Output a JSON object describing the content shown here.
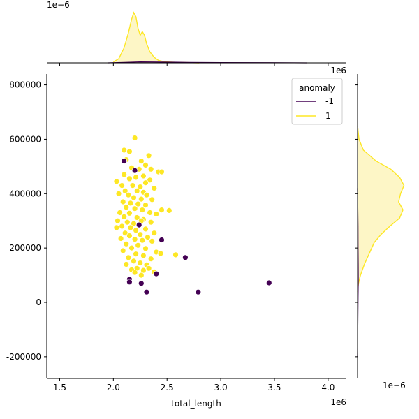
{
  "chart_data": {
    "type": "scatter",
    "xlabel": "total_length",
    "ylabel": "",
    "x_offset_label": "1e6",
    "y_offset_label": "1e6",
    "top_marginal_offset_label": "1e−6",
    "right_marginal_offset_label": "1e−6",
    "xlim": [
      1.38,
      4.17
    ],
    "ylim": [
      -280000,
      840000
    ],
    "x_ticks": [
      1.5,
      2.0,
      2.5,
      3.0,
      3.5,
      4.0
    ],
    "x_tick_labels": [
      "1.5",
      "2.0",
      "2.5",
      "3.0",
      "3.5",
      "4.0"
    ],
    "y_ticks": [
      -200000,
      0,
      200000,
      400000,
      600000,
      800000
    ],
    "y_tick_labels": [
      "-200000",
      "0",
      "200000",
      "400000",
      "600000",
      "800000"
    ],
    "legend": {
      "title": "anomaly",
      "placement": "top-right",
      "entries": [
        {
          "label": "-1",
          "color": "#440154"
        },
        {
          "label": "1",
          "color": "#fde725"
        }
      ]
    },
    "colors": {
      "anomaly": "#440154",
      "normal": "#fde725",
      "normal_fill": "#fdf6c6",
      "axis": "#000000"
    },
    "series": [
      {
        "name": "-1",
        "points": [
          [
            2.1,
            520000
          ],
          [
            2.2,
            485000
          ],
          [
            2.24,
            285000
          ],
          [
            2.45,
            230000
          ],
          [
            2.67,
            165000
          ],
          [
            2.4,
            105000
          ],
          [
            2.15,
            85000
          ],
          [
            2.15,
            75000
          ],
          [
            2.26,
            70000
          ],
          [
            2.31,
            38000
          ],
          [
            2.79,
            38000
          ],
          [
            3.45,
            72000
          ]
        ]
      },
      {
        "name": "1",
        "points": [
          [
            2.2,
            605000
          ],
          [
            2.1,
            560000
          ],
          [
            2.15,
            555000
          ],
          [
            2.33,
            540000
          ],
          [
            2.12,
            525000
          ],
          [
            2.26,
            520000
          ],
          [
            2.3,
            505000
          ],
          [
            2.17,
            495000
          ],
          [
            2.24,
            490000
          ],
          [
            2.35,
            490000
          ],
          [
            2.42,
            480000
          ],
          [
            2.45,
            480000
          ],
          [
            2.1,
            470000
          ],
          [
            2.28,
            465000
          ],
          [
            2.21,
            460000
          ],
          [
            2.15,
            455000
          ],
          [
            2.03,
            445000
          ],
          [
            2.34,
            450000
          ],
          [
            2.3,
            440000
          ],
          [
            2.08,
            430000
          ],
          [
            2.18,
            430000
          ],
          [
            2.25,
            425000
          ],
          [
            2.38,
            420000
          ],
          [
            2.11,
            410000
          ],
          [
            2.22,
            410000
          ],
          [
            2.28,
            405000
          ],
          [
            2.05,
            400000
          ],
          [
            2.14,
            395000
          ],
          [
            2.31,
            395000
          ],
          [
            2.19,
            385000
          ],
          [
            2.26,
            380000
          ],
          [
            2.36,
            378000
          ],
          [
            2.09,
            370000
          ],
          [
            2.16,
            365000
          ],
          [
            2.23,
            362000
          ],
          [
            2.3,
            358000
          ],
          [
            2.12,
            350000
          ],
          [
            2.2,
            345000
          ],
          [
            2.27,
            340000
          ],
          [
            2.45,
            340000
          ],
          [
            2.52,
            338000
          ],
          [
            2.06,
            330000
          ],
          [
            2.15,
            328000
          ],
          [
            2.34,
            330000
          ],
          [
            2.4,
            325000
          ],
          [
            2.1,
            315000
          ],
          [
            2.22,
            312000
          ],
          [
            2.28,
            305000
          ],
          [
            2.04,
            300000
          ],
          [
            2.13,
            295000
          ],
          [
            2.19,
            290000
          ],
          [
            2.26,
            300000
          ],
          [
            2.35,
            295000
          ],
          [
            2.08,
            280000
          ],
          [
            2.16,
            275000
          ],
          [
            2.03,
            275000
          ],
          [
            2.3,
            270000
          ],
          [
            2.21,
            265000
          ],
          [
            2.11,
            255000
          ],
          [
            2.25,
            250000
          ],
          [
            2.38,
            255000
          ],
          [
            2.15,
            245000
          ],
          [
            2.32,
            240000
          ],
          [
            2.07,
            235000
          ],
          [
            2.2,
            232000
          ],
          [
            2.27,
            228000
          ],
          [
            2.36,
            225000
          ],
          [
            2.12,
            215000
          ],
          [
            2.23,
            210000
          ],
          [
            2.17,
            200000
          ],
          [
            2.3,
            198000
          ],
          [
            2.09,
            190000
          ],
          [
            2.4,
            185000
          ],
          [
            2.44,
            180000
          ],
          [
            2.58,
            175000
          ],
          [
            2.21,
            178000
          ],
          [
            2.28,
            172000
          ],
          [
            2.14,
            165000
          ],
          [
            2.35,
            160000
          ],
          [
            2.19,
            152000
          ],
          [
            2.25,
            145000
          ],
          [
            2.12,
            140000
          ],
          [
            2.31,
            138000
          ],
          [
            2.22,
            125000
          ],
          [
            2.17,
            120000
          ],
          [
            2.28,
            118000
          ],
          [
            2.33,
            125000
          ],
          [
            2.2,
            110000
          ],
          [
            2.26,
            100000
          ],
          [
            2.38,
            112000
          ]
        ]
      }
    ],
    "top_marginal": {
      "type": "kde",
      "normal_curve": [
        [
          2.0,
          0.02
        ],
        [
          2.05,
          0.08
        ],
        [
          2.1,
          0.3
        ],
        [
          2.14,
          0.6
        ],
        [
          2.17,
          0.87
        ],
        [
          2.19,
          1.0
        ],
        [
          2.21,
          0.92
        ],
        [
          2.23,
          0.68
        ],
        [
          2.25,
          0.55
        ],
        [
          2.27,
          0.62
        ],
        [
          2.29,
          0.55
        ],
        [
          2.31,
          0.38
        ],
        [
          2.34,
          0.22
        ],
        [
          2.38,
          0.11
        ],
        [
          2.42,
          0.05
        ],
        [
          2.48,
          0.02
        ],
        [
          2.6,
          0.01
        ],
        [
          2.8,
          0.0
        ]
      ],
      "anomaly_curve": [
        [
          1.95,
          0.0
        ],
        [
          2.1,
          0.01
        ],
        [
          2.25,
          0.02
        ],
        [
          2.45,
          0.015
        ],
        [
          2.7,
          0.01
        ],
        [
          3.0,
          0.005
        ],
        [
          3.45,
          0.004
        ],
        [
          3.8,
          0.0
        ]
      ]
    },
    "right_marginal": {
      "type": "kde",
      "normal_curve": [
        [
          650000,
          0.0
        ],
        [
          600000,
          0.03
        ],
        [
          560000,
          0.12
        ],
        [
          520000,
          0.38
        ],
        [
          490000,
          0.68
        ],
        [
          460000,
          0.86
        ],
        [
          430000,
          0.95
        ],
        [
          400000,
          0.88
        ],
        [
          370000,
          0.84
        ],
        [
          340000,
          0.93
        ],
        [
          310000,
          0.86
        ],
        [
          280000,
          0.66
        ],
        [
          250000,
          0.48
        ],
        [
          220000,
          0.34
        ],
        [
          180000,
          0.24
        ],
        [
          140000,
          0.14
        ],
        [
          100000,
          0.06
        ],
        [
          70000,
          0.02
        ],
        [
          40000,
          0.0
        ]
      ],
      "anomaly_curve": [
        [
          420000,
          0.0
        ],
        [
          350000,
          0.005
        ],
        [
          280000,
          0.01
        ],
        [
          200000,
          0.012
        ],
        [
          140000,
          0.014
        ],
        [
          80000,
          0.016
        ],
        [
          20000,
          0.012
        ],
        [
          -60000,
          0.007
        ],
        [
          -140000,
          0.003
        ],
        [
          -200000,
          0.0
        ]
      ]
    }
  }
}
